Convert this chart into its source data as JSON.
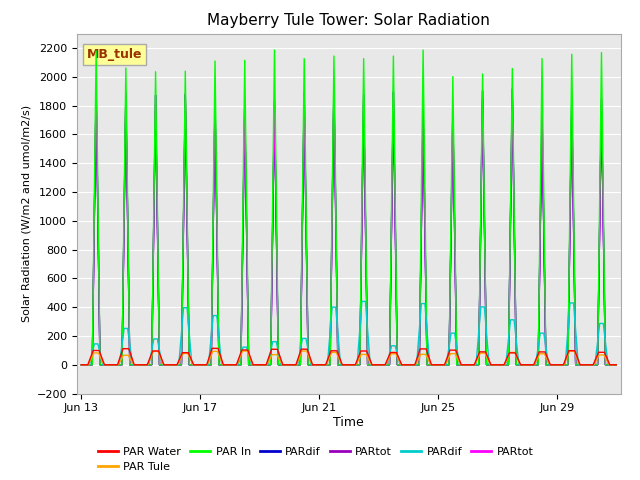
{
  "title": "Mayberry Tule Tower: Solar Radiation",
  "ylabel": "Solar Radiation (W/m2 and umol/m2/s)",
  "xlabel": "Time",
  "ylim": [
    -200,
    2300
  ],
  "yticks": [
    -200,
    0,
    200,
    400,
    600,
    800,
    1000,
    1200,
    1400,
    1600,
    1800,
    2000,
    2200
  ],
  "x_start_day": 13,
  "num_days": 18,
  "xtick_days": [
    13,
    17,
    21,
    25,
    29
  ],
  "xtick_labels": [
    "Jun 13",
    "Jun 17",
    "Jun 21",
    "Jun 25",
    "Jun 29"
  ],
  "legend_entries": [
    {
      "label": "PAR Water",
      "color": "#ff0000"
    },
    {
      "label": "PAR Tule",
      "color": "#ffa500"
    },
    {
      "label": "PAR In",
      "color": "#00ff00"
    },
    {
      "label": "PARdif",
      "color": "#0000cc"
    },
    {
      "label": "PARtot",
      "color": "#9900bb"
    },
    {
      "label": "PARdif",
      "color": "#00cccc"
    },
    {
      "label": "PARtot",
      "color": "#ff00ff"
    }
  ],
  "annotation_text": "MB_tule",
  "annotation_color": "#993300",
  "annotation_bg": "#ffff99",
  "background_color": "#e8e8e8",
  "grid_color": "#ffffff",
  "par_in_color": "#00ff00",
  "par_water_color": "#ff0000",
  "par_tule_color": "#ffa500",
  "pardif_blue_color": "#0000cc",
  "partot_purple_color": "#9900bb",
  "pardif_cyan_color": "#00cccc",
  "partot_magenta_color": "#ff00ff",
  "peak_par_in": 2150,
  "peak_partot_mag": 1900,
  "peak_par_water": 100,
  "peak_par_tule": 85,
  "peak_pardif_cyan": 250
}
